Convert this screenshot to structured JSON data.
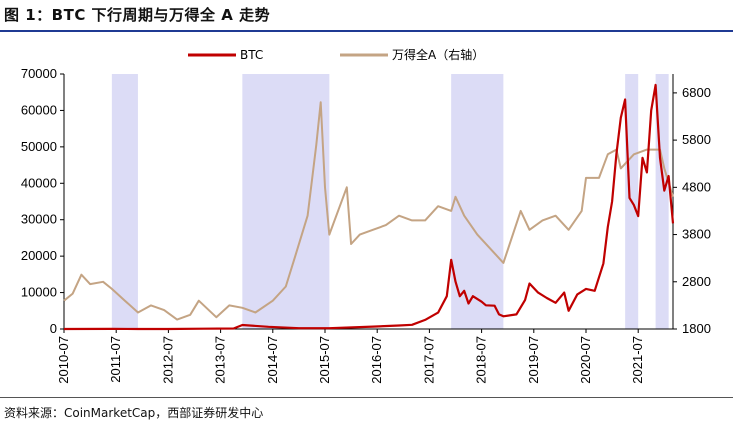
{
  "title": "图 1：BTC 下行周期与万得全 A 走势",
  "source": "资料来源：CoinMarketCap，西部证券研发中心",
  "chart_data": {
    "type": "line",
    "title": "图 1：BTC 下行周期与万得全 A 走势",
    "x_tick_labels": [
      "2010-07",
      "2011-07",
      "2012-07",
      "2013-07",
      "2014-07",
      "2015-07",
      "2016-07",
      "2017-07",
      "2018-07",
      "2019-07",
      "2020-07",
      "2021-07"
    ],
    "x_range": [
      "2010-07",
      "2022-03"
    ],
    "ylim_left": [
      0,
      70000
    ],
    "yticks_left": [
      0,
      10000,
      20000,
      30000,
      40000,
      50000,
      60000,
      70000
    ],
    "ylim_right": [
      1800,
      7200
    ],
    "yticks_right": [
      1800,
      2800,
      3800,
      4800,
      5800,
      6800
    ],
    "legend_position": "top-center",
    "grid": false,
    "colors": {
      "btc": "#c00000",
      "wind_a": "#c4a484",
      "shade": "#dcdcf6"
    },
    "shaded_periods": [
      {
        "start": "2011-06",
        "end": "2011-12"
      },
      {
        "start": "2013-12",
        "end": "2015-08"
      },
      {
        "start": "2017-12",
        "end": "2018-12"
      },
      {
        "start": "2021-04",
        "end": "2021-07"
      },
      {
        "start": "2021-11",
        "end": "2022-02"
      }
    ],
    "series": [
      {
        "name": "BTC",
        "axis": "left",
        "color": "#c00000",
        "points": [
          [
            "2010-07",
            0
          ],
          [
            "2011-06",
            20
          ],
          [
            "2011-12",
            4
          ],
          [
            "2012-07",
            8
          ],
          [
            "2013-03",
            80
          ],
          [
            "2013-10",
            150
          ],
          [
            "2013-12",
            1100
          ],
          [
            "2014-06",
            600
          ],
          [
            "2015-01",
            220
          ],
          [
            "2015-08",
            230
          ],
          [
            "2016-06",
            650
          ],
          [
            "2016-12",
            950
          ],
          [
            "2017-03",
            1150
          ],
          [
            "2017-06",
            2500
          ],
          [
            "2017-09",
            4500
          ],
          [
            "2017-11",
            9000
          ],
          [
            "2017-12",
            19000
          ],
          [
            "2018-01",
            13000
          ],
          [
            "2018-02",
            9000
          ],
          [
            "2018-03",
            10500
          ],
          [
            "2018-04",
            7000
          ],
          [
            "2018-05",
            9000
          ],
          [
            "2018-07",
            7500
          ],
          [
            "2018-08",
            6500
          ],
          [
            "2018-10",
            6400
          ],
          [
            "2018-11",
            4000
          ],
          [
            "2018-12",
            3500
          ],
          [
            "2019-03",
            4000
          ],
          [
            "2019-05",
            8000
          ],
          [
            "2019-06",
            12500
          ],
          [
            "2019-08",
            10000
          ],
          [
            "2019-10",
            8500
          ],
          [
            "2019-12",
            7200
          ],
          [
            "2020-02",
            10000
          ],
          [
            "2020-03",
            5000
          ],
          [
            "2020-05",
            9500
          ],
          [
            "2020-07",
            11000
          ],
          [
            "2020-09",
            10500
          ],
          [
            "2020-11",
            18000
          ],
          [
            "2020-12",
            28000
          ],
          [
            "2021-01",
            35000
          ],
          [
            "2021-02",
            48000
          ],
          [
            "2021-03",
            58000
          ],
          [
            "2021-04",
            63000
          ],
          [
            "2021-05",
            36000
          ],
          [
            "2021-06",
            34000
          ],
          [
            "2021-07",
            31000
          ],
          [
            "2021-08",
            47000
          ],
          [
            "2021-09",
            43000
          ],
          [
            "2021-10",
            60000
          ],
          [
            "2021-11",
            67000
          ],
          [
            "2021-12",
            47000
          ],
          [
            "2022-01",
            38000
          ],
          [
            "2022-02",
            42000
          ],
          [
            "2022-03",
            29000
          ]
        ]
      },
      {
        "name": "万得全A（右轴）",
        "axis": "right",
        "color": "#c4a484",
        "points": [
          [
            "2010-07",
            2400
          ],
          [
            "2010-09",
            2550
          ],
          [
            "2010-11",
            2950
          ],
          [
            "2011-01",
            2750
          ],
          [
            "2011-04",
            2800
          ],
          [
            "2011-06",
            2650
          ],
          [
            "2011-09",
            2400
          ],
          [
            "2011-12",
            2150
          ],
          [
            "2012-03",
            2300
          ],
          [
            "2012-06",
            2200
          ],
          [
            "2012-09",
            2000
          ],
          [
            "2012-12",
            2100
          ],
          [
            "2013-02",
            2400
          ],
          [
            "2013-06",
            2050
          ],
          [
            "2013-09",
            2300
          ],
          [
            "2013-12",
            2250
          ],
          [
            "2014-03",
            2150
          ],
          [
            "2014-07",
            2400
          ],
          [
            "2014-10",
            2700
          ],
          [
            "2014-12",
            3300
          ],
          [
            "2015-03",
            4200
          ],
          [
            "2015-05",
            5700
          ],
          [
            "2015-06",
            6600
          ],
          [
            "2015-07",
            4800
          ],
          [
            "2015-08",
            3800
          ],
          [
            "2015-12",
            4800
          ],
          [
            "2016-01",
            3600
          ],
          [
            "2016-03",
            3800
          ],
          [
            "2016-06",
            3900
          ],
          [
            "2016-09",
            4000
          ],
          [
            "2016-12",
            4200
          ],
          [
            "2017-03",
            4100
          ],
          [
            "2017-06",
            4100
          ],
          [
            "2017-09",
            4400
          ],
          [
            "2017-12",
            4300
          ],
          [
            "2018-01",
            4600
          ],
          [
            "2018-03",
            4200
          ],
          [
            "2018-06",
            3800
          ],
          [
            "2018-09",
            3500
          ],
          [
            "2018-12",
            3200
          ],
          [
            "2019-04",
            4300
          ],
          [
            "2019-06",
            3900
          ],
          [
            "2019-09",
            4100
          ],
          [
            "2019-12",
            4200
          ],
          [
            "2020-02",
            4000
          ],
          [
            "2020-03",
            3900
          ],
          [
            "2020-06",
            4300
          ],
          [
            "2020-07",
            5000
          ],
          [
            "2020-10",
            5000
          ],
          [
            "2020-12",
            5500
          ],
          [
            "2021-02",
            5600
          ],
          [
            "2021-03",
            5200
          ],
          [
            "2021-06",
            5500
          ],
          [
            "2021-09",
            5600
          ],
          [
            "2021-12",
            5600
          ],
          [
            "2022-01",
            5200
          ],
          [
            "2022-03",
            4600
          ]
        ]
      }
    ]
  }
}
